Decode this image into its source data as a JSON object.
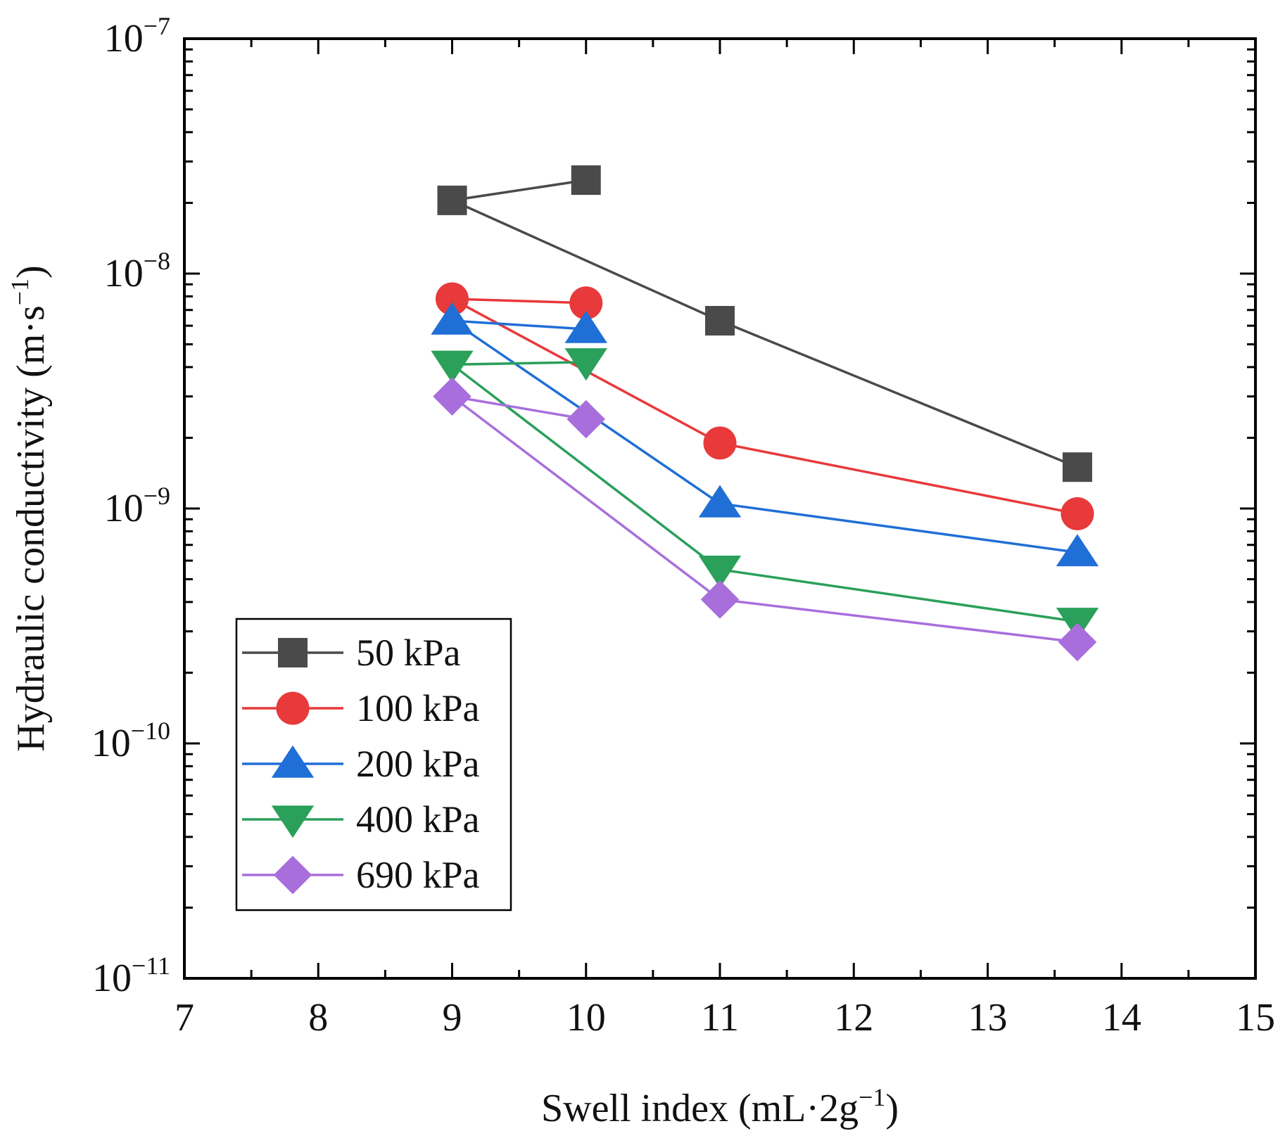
{
  "chart_data": {
    "type": "line",
    "title": "",
    "xlabel": "Swell index (mL·2g⁻¹)",
    "xlabel_main": "Swell index (mL·2g",
    "xlabel_sup": "−1",
    "xlabel_close": ")",
    "ylabel": "Hydraulic conductivity (m·s⁻¹)",
    "ylabel_main": "Hydraulic conductivity (m·s",
    "ylabel_sup": "−1",
    "ylabel_close": ")",
    "xlim": [
      7,
      15
    ],
    "ylim": [
      1e-11,
      1e-07
    ],
    "yscale": "log",
    "grid": false,
    "legend_position": "bottom-left",
    "x_ticks": [
      "7",
      "8",
      "9",
      "10",
      "11",
      "12",
      "13",
      "14",
      "15"
    ],
    "y_ticks": [
      {
        "base": "10",
        "exp": "−11",
        "value": 1e-11
      },
      {
        "base": "10",
        "exp": "−10",
        "value": 1e-10
      },
      {
        "base": "10",
        "exp": "−9",
        "value": 1e-09
      },
      {
        "base": "10",
        "exp": "−8",
        "value": 1e-08
      },
      {
        "base": "10",
        "exp": "−7",
        "value": 1e-07
      }
    ],
    "series": [
      {
        "name": "50 kPa",
        "color": "#4a4a4a",
        "marker": "square",
        "x": [
          9,
          10,
          11,
          13.67
        ],
        "y": [
          2.05e-08,
          2.5e-08,
          6.3e-09,
          1.5e-09
        ],
        "path_order": [
          1,
          0,
          2,
          3
        ]
      },
      {
        "name": "100 kPa",
        "color": "#e8393b",
        "marker": "circle",
        "x": [
          9,
          10,
          11,
          13.67
        ],
        "y": [
          7.8e-09,
          7.5e-09,
          1.9e-09,
          9.5e-10
        ],
        "path_order": [
          1,
          0,
          2,
          3
        ]
      },
      {
        "name": "200 kPa",
        "color": "#1f6fd6",
        "marker": "triangle-up",
        "x": [
          9,
          10,
          11,
          13.67
        ],
        "y": [
          6.3e-09,
          5.8e-09,
          1.05e-09,
          6.5e-10
        ],
        "path_order": [
          1,
          0,
          2,
          3
        ]
      },
      {
        "name": "400 kPa",
        "color": "#2aa05a",
        "marker": "triangle-down",
        "x": [
          9,
          10,
          11,
          13.67
        ],
        "y": [
          4.1e-09,
          4.2e-09,
          5.5e-10,
          3.3e-10
        ],
        "path_order": [
          1,
          0,
          2,
          3
        ]
      },
      {
        "name": "690 kPa",
        "color": "#a86fdc",
        "marker": "diamond",
        "x": [
          9,
          10,
          11,
          13.67
        ],
        "y": [
          3e-09,
          2.4e-09,
          4.1e-10,
          2.7e-10
        ],
        "path_order": [
          1,
          0,
          2,
          3
        ]
      }
    ]
  }
}
